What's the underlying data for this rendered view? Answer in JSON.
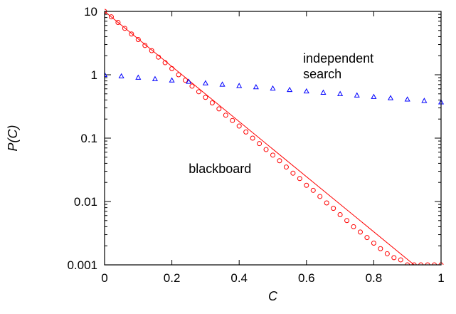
{
  "chart_data": {
    "type": "scatter",
    "xlabel": "C",
    "ylabel": "P(C)",
    "xlim": [
      0,
      1
    ],
    "ylim": [
      0.001,
      10
    ],
    "y_scale": "log",
    "x_ticks": [
      0,
      0.2,
      0.4,
      0.6,
      0.8,
      1
    ],
    "x_tick_labels": [
      "0",
      "0.2",
      "0.4",
      "0.6",
      "0.8",
      "1"
    ],
    "y_ticks": [
      0.001,
      0.01,
      0.1,
      1,
      10
    ],
    "y_tick_labels": [
      "0.001",
      "0.01",
      "0.1",
      "1",
      "10"
    ],
    "grid": false,
    "series": [
      {
        "color": "#ff0000",
        "marker": "circle",
        "fit_line": {
          "x": [
            0,
            0.92
          ],
          "y": [
            10,
            0.001
          ]
        },
        "points": {
          "x": [
            0,
            0.02,
            0.04,
            0.06,
            0.08,
            0.1,
            0.12,
            0.14,
            0.16,
            0.18,
            0.2,
            0.22,
            0.24,
            0.26,
            0.28,
            0.3,
            0.32,
            0.34,
            0.36,
            0.38,
            0.4,
            0.42,
            0.44,
            0.46,
            0.48,
            0.5,
            0.52,
            0.54,
            0.56,
            0.58,
            0.6,
            0.62,
            0.64,
            0.66,
            0.68,
            0.7,
            0.72,
            0.74,
            0.76,
            0.78,
            0.8,
            0.82,
            0.84,
            0.86,
            0.88,
            0.9,
            0.92,
            0.94,
            0.96,
            0.98,
            1
          ],
          "y": [
            10,
            8.2,
            6.7,
            5.4,
            4.4,
            3.6,
            2.9,
            2.4,
            1.9,
            1.55,
            1.25,
            1.0,
            0.82,
            0.66,
            0.54,
            0.44,
            0.36,
            0.29,
            0.23,
            0.19,
            0.155,
            0.125,
            0.1,
            0.082,
            0.066,
            0.054,
            0.044,
            0.035,
            0.028,
            0.023,
            0.018,
            0.015,
            0.012,
            0.0095,
            0.0078,
            0.0062,
            0.005,
            0.004,
            0.0033,
            0.0027,
            0.0022,
            0.0018,
            0.0015,
            0.0013,
            0.0012,
            0.001,
            0.001,
            0.001,
            0.001,
            0.001,
            0.001
          ]
        }
      },
      {
        "color": "#0000ff",
        "marker": "triangle",
        "points": {
          "x": [
            0,
            0.05,
            0.1,
            0.15,
            0.2,
            0.25,
            0.3,
            0.35,
            0.4,
            0.45,
            0.5,
            0.55,
            0.6,
            0.65,
            0.7,
            0.75,
            0.8,
            0.85,
            0.9,
            0.95,
            1
          ],
          "y": [
            1.0,
            0.95,
            0.905,
            0.86,
            0.82,
            0.78,
            0.74,
            0.705,
            0.67,
            0.64,
            0.61,
            0.58,
            0.55,
            0.525,
            0.5,
            0.475,
            0.45,
            0.43,
            0.41,
            0.39,
            0.37
          ]
        }
      }
    ],
    "annotations": [
      {
        "text_lines": [
          "independent",
          "search"
        ],
        "x": 0.59,
        "y": 1.55
      },
      {
        "text_lines": [
          "blackboard"
        ],
        "x": 0.25,
        "y": 0.028
      }
    ]
  }
}
